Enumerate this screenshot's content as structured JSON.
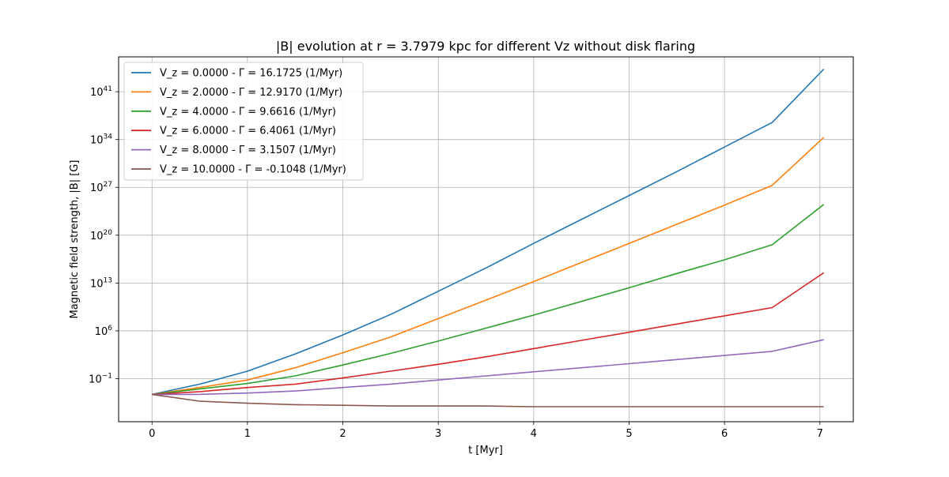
{
  "chart_data": {
    "type": "line",
    "title": "|B| evolution at r = 3.7979 kpc for different Vz without disk flaring",
    "xlabel": "t [Myr]",
    "ylabel": "Magnetic field strength, |B| [G]",
    "xlim": [
      -0.35,
      7.35
    ],
    "ylim_log10": [
      -7.3,
      46.1
    ],
    "y_scale": "log",
    "x_ticks": [
      0,
      1,
      2,
      3,
      4,
      5,
      6,
      7
    ],
    "x_tick_labels": [
      "0",
      "1",
      "2",
      "3",
      "4",
      "5",
      "6",
      "7"
    ],
    "y_ticks_log10": [
      -1,
      6,
      13,
      20,
      27,
      34,
      41
    ],
    "y_tick_labels": [
      {
        "base": "10",
        "exp": "−1"
      },
      {
        "base": "10",
        "exp": "6"
      },
      {
        "base": "10",
        "exp": "13"
      },
      {
        "base": "10",
        "exp": "20"
      },
      {
        "base": "10",
        "exp": "27"
      },
      {
        "base": "10",
        "exp": "34"
      },
      {
        "base": "10",
        "exp": "41"
      }
    ],
    "grid": true,
    "legend_position": "top-left",
    "x": [
      0,
      0.5,
      1,
      1.5,
      2,
      2.5,
      3,
      3.5,
      4,
      4.5,
      5,
      5.5,
      6,
      6.5,
      7.04
    ],
    "series": [
      {
        "name": "V_z = 0.0000 - Γ = 16.1725 (1/Myr)",
        "color": "#1f77b4",
        "log10_values": [
          -3.3,
          -1.8,
          0.1,
          2.6,
          5.4,
          8.4,
          11.8,
          15.2,
          18.8,
          22.3,
          25.8,
          29.3,
          32.9,
          36.5,
          44.3
        ]
      },
      {
        "name": "V_z = 2.0000 - Γ = 12.9170 (1/Myr)",
        "color": "#ff7f0e",
        "log10_values": [
          -3.3,
          -2.3,
          -1.2,
          0.6,
          2.8,
          5.1,
          7.8,
          10.5,
          13.2,
          16.0,
          18.8,
          21.6,
          24.4,
          27.3,
          34.3
        ]
      },
      {
        "name": "V_z = 4.0000 - Γ = 9.6616 (1/Myr)",
        "color": "#2ca02c",
        "log10_values": [
          -3.3,
          -2.5,
          -1.7,
          -0.6,
          1.0,
          2.7,
          4.5,
          6.4,
          8.3,
          10.3,
          12.3,
          14.4,
          16.4,
          18.6,
          24.5
        ]
      },
      {
        "name": "V_z = 6.0000 - Γ = 6.4061 (1/Myr)",
        "color": "#d62728",
        "log10_values": [
          -3.3,
          -2.9,
          -2.3,
          -1.8,
          -0.9,
          0.1,
          1.1,
          2.2,
          3.4,
          4.6,
          5.8,
          7.0,
          8.2,
          9.4,
          14.5
        ]
      },
      {
        "name": "V_z = 8.0000 - Γ = 3.1507 (1/Myr)",
        "color": "#9467bd",
        "log10_values": [
          -3.3,
          -3.3,
          -3.1,
          -2.8,
          -2.3,
          -1.8,
          -1.2,
          -0.6,
          0.0,
          0.6,
          1.2,
          1.8,
          2.4,
          3.0,
          4.7
        ]
      },
      {
        "name": "V_z = 10.0000 - Γ = -0.1048 (1/Myr)",
        "color": "#8c564b",
        "log10_values": [
          -3.3,
          -4.3,
          -4.6,
          -4.8,
          -4.9,
          -5.0,
          -5.0,
          -5.0,
          -5.1,
          -5.1,
          -5.1,
          -5.1,
          -5.1,
          -5.1,
          -5.1
        ]
      }
    ]
  }
}
